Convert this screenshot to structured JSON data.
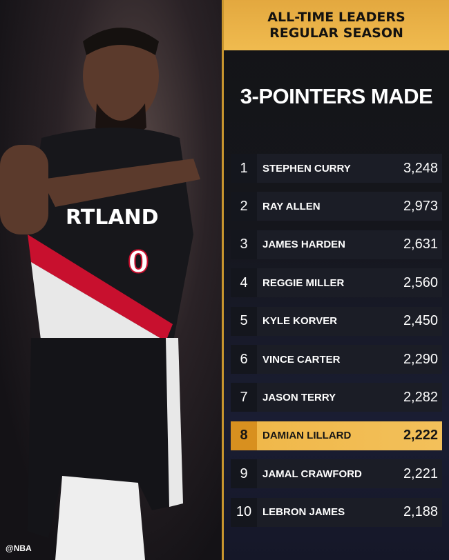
{
  "header": {
    "line1": "ALL-TIME LEADERS",
    "line2": "REGULAR SEASON"
  },
  "title": "3-POINTERS MADE",
  "watermark": "@NBA",
  "jersey_text": "RTLAND",
  "jersey_number": "0",
  "colors": {
    "gold": "#f0bb4f",
    "highlight": "#d8901f",
    "row": "#1b1d26"
  },
  "leaders": [
    {
      "rank": "1",
      "name": "STEPHEN CURRY",
      "value": "3,248"
    },
    {
      "rank": "2",
      "name": "RAY ALLEN",
      "value": "2,973"
    },
    {
      "rank": "3",
      "name": "JAMES HARDEN",
      "value": "2,631"
    },
    {
      "rank": "4",
      "name": "REGGIE MILLER",
      "value": "2,560"
    },
    {
      "rank": "5",
      "name": "KYLE KORVER",
      "value": "2,450"
    },
    {
      "rank": "6",
      "name": "VINCE CARTER",
      "value": "2,290"
    },
    {
      "rank": "7",
      "name": "JASON TERRY",
      "value": "2,282"
    },
    {
      "rank": "8",
      "name": "DAMIAN LILLARD",
      "value": "2,222",
      "highlighted": true
    },
    {
      "rank": "9",
      "name": "JAMAL CRAWFORD",
      "value": "2,221"
    },
    {
      "rank": "10",
      "name": "LEBRON JAMES",
      "value": "2,188"
    }
  ]
}
